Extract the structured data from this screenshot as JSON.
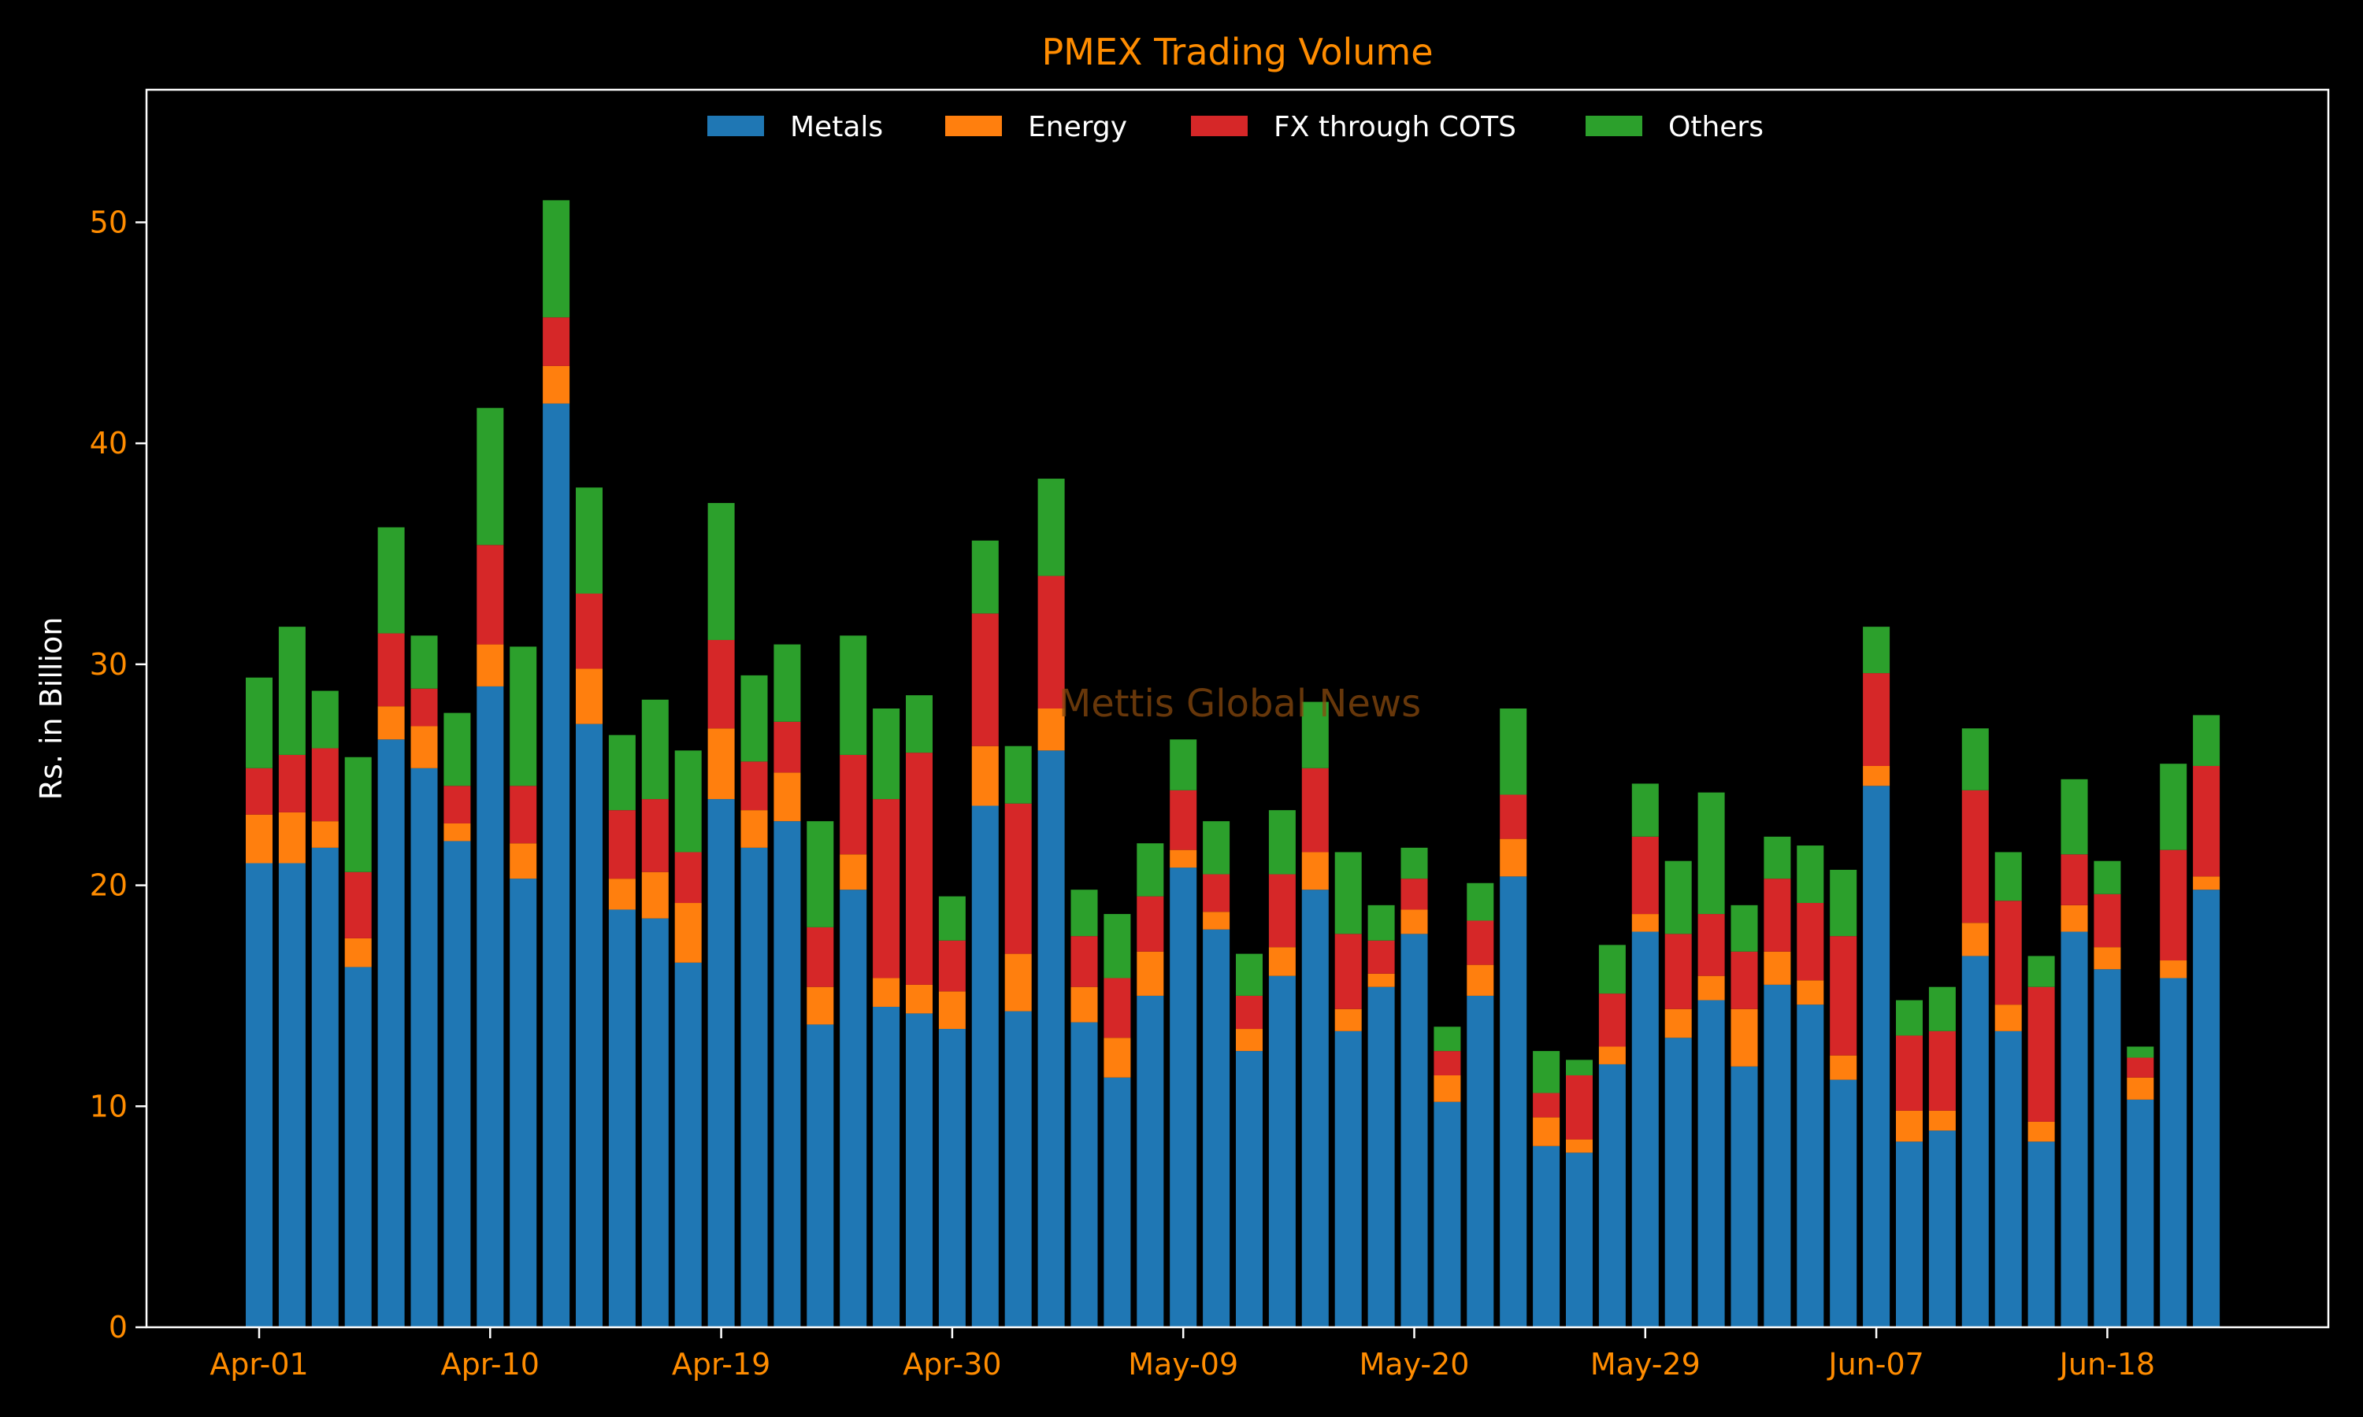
{
  "chart_data": {
    "type": "bar",
    "stacked": true,
    "title": "PMEX Trading Volume",
    "ylabel": "Rs. in Billion",
    "xlabel": "",
    "ylim": [
      0,
      56
    ],
    "yticks": [
      0,
      10,
      20,
      30,
      40,
      50
    ],
    "watermark": "Mettis Global News",
    "legend": {
      "placement": "top-center",
      "columns": 4
    },
    "grid": false,
    "x_tick_labels": [
      {
        "index": 0,
        "label": "Apr-01"
      },
      {
        "index": 7,
        "label": "Apr-10"
      },
      {
        "index": 14,
        "label": "Apr-19"
      },
      {
        "index": 21,
        "label": "Apr-30"
      },
      {
        "index": 28,
        "label": "May-09"
      },
      {
        "index": 35,
        "label": "May-20"
      },
      {
        "index": 42,
        "label": "May-29"
      },
      {
        "index": 49,
        "label": "Jun-07"
      },
      {
        "index": 56,
        "label": "Jun-18"
      }
    ],
    "series": [
      {
        "name": "Metals",
        "color": "#1f77b4",
        "values": [
          21.0,
          21.0,
          21.7,
          16.3,
          26.6,
          25.3,
          22.0,
          29.0,
          20.3,
          41.8,
          27.3,
          18.9,
          18.5,
          16.5,
          23.9,
          21.7,
          22.9,
          13.7,
          19.8,
          14.5,
          14.2,
          13.5,
          23.6,
          14.3,
          26.1,
          13.8,
          11.3,
          15.0,
          20.8,
          18.0,
          12.5,
          15.9,
          19.8,
          13.4,
          15.4,
          17.8,
          10.2,
          15.0,
          20.4,
          8.2,
          7.9,
          11.9,
          17.9,
          13.1,
          14.8,
          11.8,
          15.5,
          14.6,
          11.2,
          24.5,
          8.4,
          8.9,
          16.8,
          13.4,
          8.4,
          17.9,
          16.2,
          10.3,
          15.8,
          19.8
        ]
      },
      {
        "name": "Energy",
        "color": "#ff7f0e",
        "values": [
          2.2,
          2.3,
          1.2,
          1.3,
          1.5,
          1.9,
          0.8,
          1.9,
          1.6,
          1.7,
          2.5,
          1.4,
          2.1,
          2.7,
          3.2,
          1.7,
          2.2,
          1.7,
          1.6,
          1.3,
          1.3,
          1.7,
          2.7,
          2.6,
          1.9,
          1.6,
          1.8,
          2.0,
          0.8,
          0.8,
          1.0,
          1.3,
          1.7,
          1.0,
          0.6,
          1.1,
          1.2,
          1.4,
          1.7,
          1.3,
          0.6,
          0.8,
          0.8,
          1.3,
          1.1,
          2.6,
          1.5,
          1.1,
          1.1,
          0.9,
          1.4,
          0.9,
          1.5,
          1.2,
          0.9,
          1.2,
          1.0,
          1.0,
          0.8,
          0.6
        ]
      },
      {
        "name": "FX through COTS",
        "color": "#d62728",
        "values": [
          2.1,
          2.6,
          3.3,
          3.0,
          3.3,
          1.7,
          1.7,
          4.5,
          2.6,
          2.2,
          3.4,
          3.1,
          3.3,
          2.3,
          4.0,
          2.2,
          2.3,
          2.7,
          4.5,
          8.1,
          10.5,
          2.3,
          6.0,
          6.8,
          6.0,
          2.3,
          2.7,
          2.5,
          2.7,
          1.7,
          1.5,
          3.3,
          3.8,
          3.4,
          1.5,
          1.4,
          1.1,
          2.0,
          2.0,
          1.1,
          2.9,
          2.4,
          3.5,
          3.4,
          2.8,
          2.6,
          3.3,
          3.5,
          5.4,
          4.2,
          3.4,
          3.6,
          6.0,
          4.7,
          6.1,
          2.3,
          2.4,
          0.9,
          5.0,
          5.0
        ]
      },
      {
        "name": "Others",
        "color": "#2ca02c",
        "values": [
          4.1,
          5.8,
          2.6,
          5.2,
          4.8,
          2.4,
          3.3,
          6.2,
          6.3,
          5.3,
          4.8,
          3.4,
          4.5,
          4.6,
          6.2,
          3.9,
          3.5,
          4.8,
          5.4,
          4.1,
          2.6,
          2.0,
          3.3,
          2.6,
          4.4,
          2.1,
          2.9,
          2.4,
          2.3,
          2.4,
          1.9,
          2.9,
          3.0,
          3.7,
          1.6,
          1.4,
          1.1,
          1.7,
          3.9,
          1.9,
          0.7,
          2.2,
          2.4,
          3.3,
          5.5,
          2.1,
          1.9,
          2.6,
          3.0,
          2.1,
          1.6,
          2.0,
          2.8,
          2.2,
          1.4,
          3.4,
          1.5,
          0.5,
          3.9,
          2.3
        ]
      }
    ]
  }
}
